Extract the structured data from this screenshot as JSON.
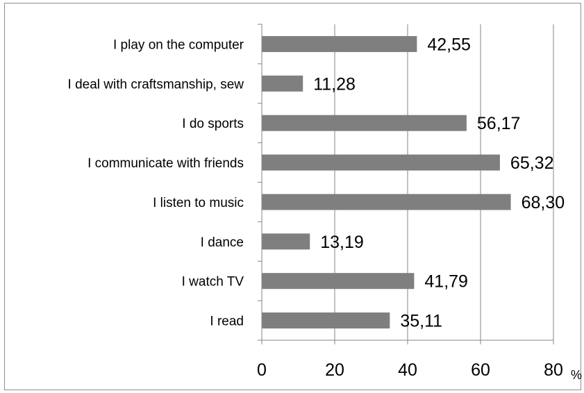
{
  "chart_data": {
    "type": "bar",
    "orientation": "horizontal",
    "categories": [
      "I play on the computer",
      "I deal with craftsmanship, sew",
      "I do sports",
      "I communicate with friends",
      "I listen to music",
      "I dance",
      "I watch TV",
      "I read"
    ],
    "values": [
      42.55,
      11.28,
      56.17,
      65.32,
      68.3,
      13.19,
      41.79,
      35.11
    ],
    "data_labels": [
      "42,55",
      "11,28",
      "56,17",
      "65,32",
      "68,30",
      "13,19",
      "41,79",
      "35,11"
    ],
    "x_ticks": [
      "0",
      "20",
      "40",
      "60",
      "80"
    ],
    "xlim": [
      0,
      80
    ],
    "x_unit": "%",
    "grid": "vertical",
    "bar_color": "#7f7f7f",
    "grid_color": "#868686"
  }
}
